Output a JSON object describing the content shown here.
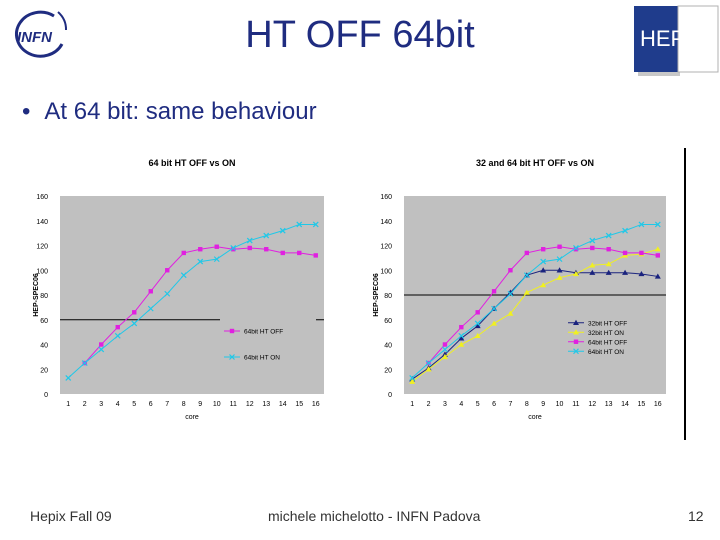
{
  "slide": {
    "title": "HT OFF 64bit",
    "bullet": "At 64 bit: same behaviour",
    "logo_left_text": "INFN",
    "logo_right_text": "HEPiX"
  },
  "footer": {
    "left": "Hepix Fall 09",
    "center": "michele michelotto - INFN Padova",
    "right": "12"
  },
  "colors": {
    "title": "#1f2c80",
    "plot_bg": "#c0c0c0",
    "series_magenta": "#e020e0",
    "series_cyan": "#20c8e8",
    "series_navy": "#1a237e",
    "series_yellow": "#f0f020"
  },
  "chart_data": [
    {
      "type": "line",
      "title": "64 bit HT OFF vs ON",
      "xlabel": "core",
      "ylabel": "HEP-SPEC06",
      "categories": [
        "1",
        "2",
        "3",
        "4",
        "5",
        "6",
        "7",
        "8",
        "9",
        "10",
        "11",
        "12",
        "13",
        "14",
        "15",
        "16"
      ],
      "ylim": [
        0,
        160
      ],
      "yticks": [
        0,
        20,
        40,
        60,
        80,
        100,
        120,
        140,
        160
      ],
      "reference_line": 60,
      "legend_position": "bottom-right",
      "series": [
        {
          "name": "64bit HT OFF",
          "color": "#e020e0",
          "marker": "square",
          "values": [
            null,
            25,
            40,
            54,
            66,
            83,
            100,
            114,
            117,
            119,
            117,
            118,
            117,
            114,
            114,
            112
          ]
        },
        {
          "name": "64bit HT ON",
          "color": "#20c8e8",
          "marker": "x",
          "values": [
            13,
            25,
            36,
            47,
            57,
            69,
            81,
            96,
            107,
            109,
            118,
            124,
            128,
            132,
            137,
            137
          ]
        }
      ]
    },
    {
      "type": "line",
      "title": "32 and 64 bit HT OFF vs ON",
      "xlabel": "core",
      "ylabel": "HEP-SPEC06",
      "categories": [
        "1",
        "2",
        "3",
        "4",
        "5",
        "6",
        "7",
        "8",
        "9",
        "10",
        "11",
        "12",
        "13",
        "14",
        "15",
        "16"
      ],
      "ylim": [
        0,
        160
      ],
      "yticks": [
        0,
        20,
        40,
        60,
        80,
        100,
        120,
        140,
        160
      ],
      "reference_line": 80,
      "legend_position": "bottom-right",
      "series": [
        {
          "name": "32bit HT OFF",
          "color": "#1a237e",
          "marker": "triangle",
          "values": [
            12,
            21,
            32,
            45,
            55,
            69,
            82,
            96,
            100,
            100,
            98,
            98,
            98,
            98,
            97,
            95
          ]
        },
        {
          "name": "32bit HT ON",
          "color": "#f0f020",
          "marker": "triangle",
          "values": [
            10,
            20,
            30,
            40,
            47,
            57,
            65,
            82,
            88,
            94,
            97,
            104,
            105,
            112,
            113,
            117
          ]
        },
        {
          "name": "64bit HT OFF",
          "color": "#e020e0",
          "marker": "square",
          "values": [
            null,
            25,
            40,
            54,
            66,
            83,
            100,
            114,
            117,
            119,
            117,
            118,
            117,
            114,
            114,
            112
          ]
        },
        {
          "name": "64bit HT ON",
          "color": "#20c8e8",
          "marker": "x",
          "values": [
            13,
            25,
            36,
            47,
            57,
            69,
            81,
            96,
            107,
            109,
            118,
            124,
            128,
            132,
            137,
            137
          ]
        }
      ]
    }
  ]
}
